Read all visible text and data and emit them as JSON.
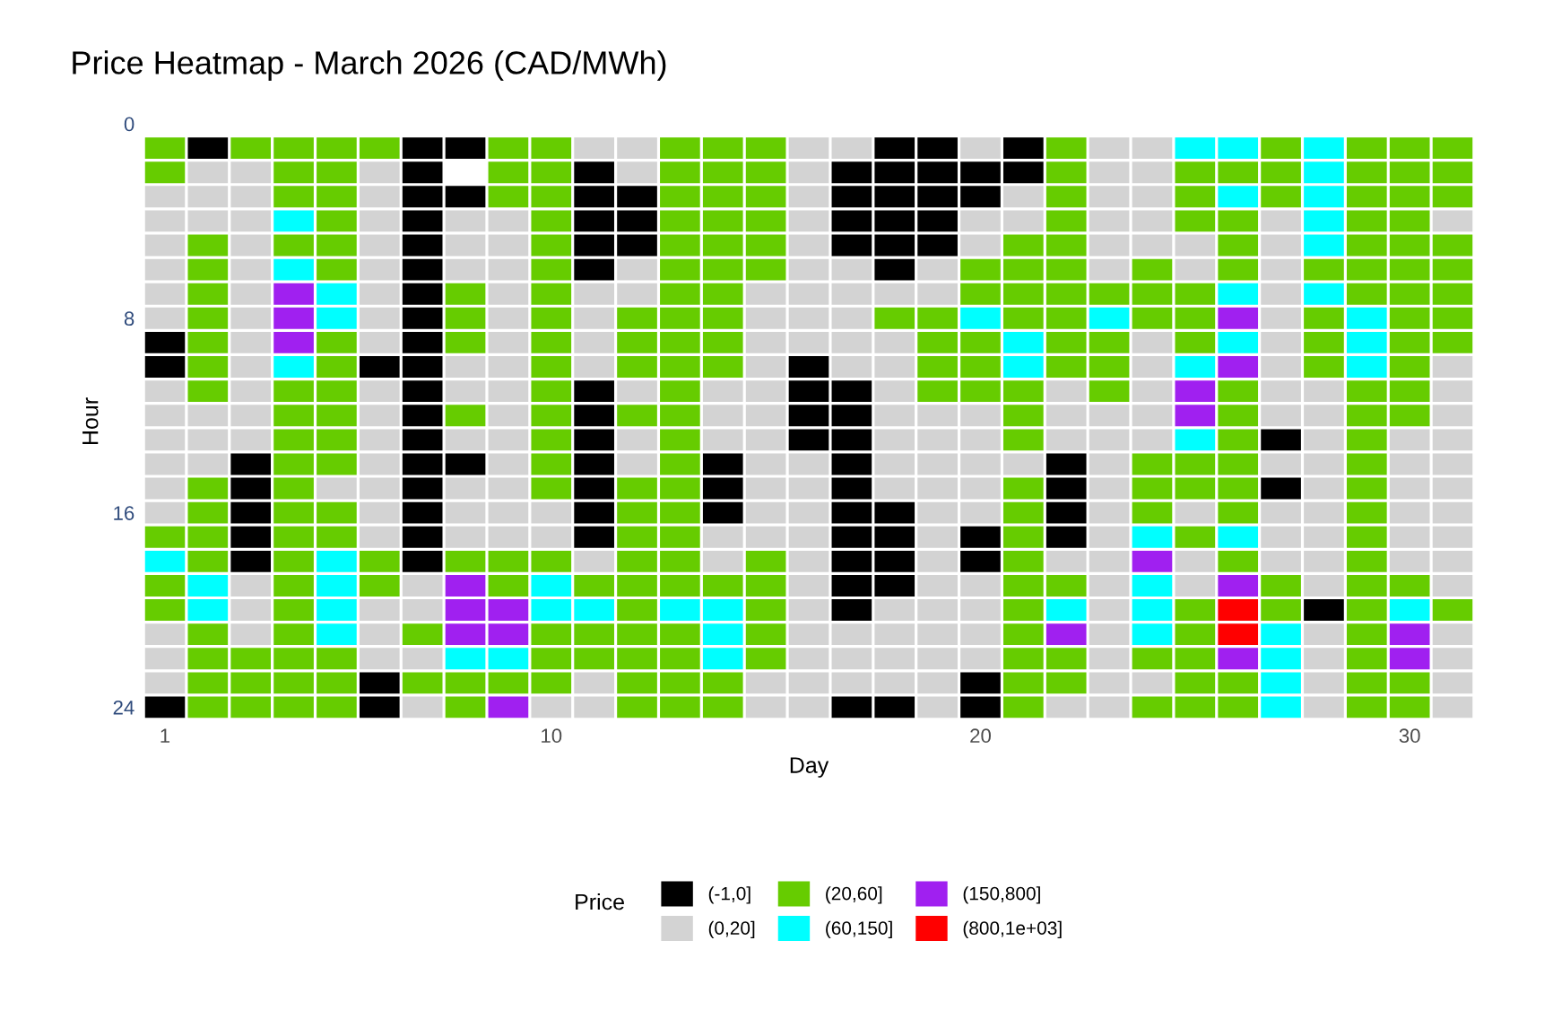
{
  "chart_data": {
    "type": "scatter",
    "marker": "square",
    "title": "Price Heatmap - March 2026 (CAD/MWh)",
    "xlabel": "Day",
    "ylabel": "Hour",
    "legend_title": "Price",
    "legend": "bottom",
    "xlim": [
      0.5,
      31.5
    ],
    "xticks": [
      1,
      10,
      20,
      30
    ],
    "ylim": [
      24.5,
      0
    ],
    "yticks": [
      0,
      8,
      16,
      24
    ],
    "series": [
      {
        "name": "(-1,0]",
        "color": "#000000",
        "x": [
          1,
          1,
          1,
          2,
          3,
          3,
          3,
          3,
          3,
          6,
          6,
          6,
          7,
          7,
          7,
          7,
          7,
          7,
          7,
          7,
          7,
          7,
          7,
          7,
          7,
          7,
          7,
          7,
          7,
          7,
          8,
          8,
          8,
          11,
          11,
          11,
          11,
          11,
          11,
          11,
          11,
          11,
          11,
          11,
          11,
          12,
          12,
          12,
          14,
          14,
          14,
          16,
          16,
          16,
          16,
          17,
          17,
          17,
          17,
          17,
          17,
          17,
          17,
          17,
          17,
          17,
          17,
          17,
          17,
          17,
          18,
          18,
          18,
          18,
          18,
          18,
          18,
          18,
          18,
          18,
          18,
          19,
          19,
          19,
          19,
          19,
          20,
          20,
          20,
          20,
          20,
          20,
          21,
          21,
          22,
          22,
          22,
          22,
          27,
          27,
          28
        ],
        "values": [
          9,
          10,
          24,
          1,
          14,
          15,
          16,
          17,
          18,
          10,
          23,
          24,
          1,
          2,
          3,
          4,
          5,
          6,
          7,
          8,
          9,
          10,
          11,
          12,
          13,
          14,
          15,
          16,
          17,
          18,
          1,
          3,
          14,
          2,
          3,
          4,
          5,
          6,
          11,
          12,
          13,
          14,
          15,
          16,
          17,
          3,
          4,
          5,
          14,
          15,
          16,
          10,
          11,
          12,
          13,
          2,
          3,
          4,
          5,
          11,
          12,
          13,
          14,
          15,
          16,
          17,
          18,
          19,
          20,
          24,
          1,
          2,
          3,
          4,
          5,
          6,
          16,
          17,
          18,
          19,
          24,
          1,
          2,
          3,
          4,
          5,
          2,
          3,
          17,
          18,
          23,
          24,
          1,
          2,
          14,
          15,
          16,
          17,
          13,
          15,
          20
        ]
      },
      {
        "name": "(0,20]",
        "color": "#d3d3d3",
        "x": [
          1,
          1,
          1,
          1,
          1,
          1,
          1,
          1,
          1,
          1,
          1,
          1,
          1,
          1,
          1,
          2,
          2,
          2,
          2,
          2,
          2,
          3,
          3,
          3,
          3,
          3,
          3,
          3,
          3,
          3,
          3,
          3,
          3,
          3,
          3,
          3,
          5,
          6,
          6,
          6,
          6,
          6,
          6,
          6,
          6,
          6,
          6,
          6,
          6,
          6,
          6,
          6,
          6,
          6,
          6,
          7,
          7,
          7,
          7,
          8,
          8,
          8,
          8,
          8,
          8,
          8,
          8,
          8,
          9,
          9,
          9,
          9,
          9,
          9,
          9,
          9,
          9,
          9,
          9,
          9,
          9,
          9,
          10,
          10,
          10,
          11,
          11,
          11,
          11,
          11,
          11,
          11,
          11,
          12,
          12,
          12,
          12,
          12,
          12,
          12,
          14,
          14,
          14,
          14,
          14,
          15,
          15,
          15,
          15,
          15,
          15,
          15,
          15,
          15,
          15,
          15,
          15,
          15,
          16,
          16,
          16,
          16,
          16,
          16,
          16,
          16,
          16,
          16,
          16,
          16,
          16,
          16,
          16,
          16,
          16,
          16,
          16,
          16,
          17,
          17,
          17,
          17,
          17,
          17,
          17,
          17,
          17,
          18,
          18,
          18,
          18,
          18,
          18,
          18,
          18,
          18,
          18,
          18,
          18,
          19,
          19,
          19,
          19,
          19,
          19,
          19,
          19,
          19,
          19,
          19,
          19,
          19,
          19,
          19,
          20,
          20,
          20,
          20,
          20,
          20,
          20,
          20,
          20,
          20,
          20,
          20,
          21,
          21,
          21,
          22,
          22,
          22,
          22,
          22,
          23,
          23,
          23,
          23,
          23,
          23,
          23,
          23,
          23,
          23,
          23,
          23,
          23,
          23,
          23,
          23,
          23,
          23,
          23,
          24,
          24,
          24,
          24,
          24,
          24,
          24,
          24,
          24,
          24,
          24,
          25,
          25,
          25,
          25,
          25,
          27,
          27,
          27,
          27,
          27,
          27,
          27,
          27,
          27,
          27,
          27,
          27,
          27,
          28,
          28,
          28,
          28,
          28,
          28,
          28,
          28,
          28,
          28,
          28,
          28,
          28,
          30,
          30,
          30,
          30,
          30,
          30,
          31,
          31,
          31,
          31,
          31,
          31,
          31,
          31,
          31,
          31,
          31,
          31,
          31,
          31,
          31
        ],
        "values": [
          3,
          4,
          5,
          6,
          7,
          8,
          11,
          12,
          13,
          14,
          15,
          16,
          21,
          22,
          23,
          2,
          3,
          4,
          12,
          13,
          14,
          2,
          3,
          4,
          5,
          6,
          7,
          8,
          9,
          10,
          11,
          12,
          13,
          19,
          20,
          21,
          15,
          2,
          3,
          4,
          5,
          6,
          7,
          8,
          9,
          11,
          12,
          13,
          14,
          15,
          16,
          17,
          20,
          21,
          22,
          19,
          20,
          22,
          24,
          4,
          5,
          6,
          10,
          11,
          13,
          15,
          16,
          17,
          4,
          5,
          6,
          7,
          8,
          9,
          10,
          11,
          12,
          13,
          14,
          15,
          16,
          17,
          16,
          17,
          24,
          1,
          7,
          8,
          9,
          10,
          18,
          23,
          24,
          1,
          2,
          6,
          7,
          11,
          13,
          14,
          11,
          12,
          13,
          17,
          18,
          7,
          8,
          9,
          10,
          11,
          12,
          13,
          14,
          15,
          16,
          17,
          23,
          24,
          1,
          2,
          3,
          4,
          5,
          6,
          7,
          8,
          9,
          14,
          15,
          16,
          17,
          18,
          19,
          20,
          21,
          22,
          23,
          24,
          1,
          6,
          7,
          8,
          9,
          10,
          21,
          22,
          23,
          7,
          9,
          10,
          11,
          12,
          13,
          14,
          15,
          20,
          21,
          22,
          23,
          6,
          7,
          12,
          13,
          14,
          15,
          16,
          17,
          18,
          19,
          20,
          21,
          22,
          23,
          24,
          1,
          4,
          5,
          12,
          13,
          14,
          15,
          16,
          19,
          20,
          21,
          22,
          3,
          4,
          14,
          11,
          12,
          13,
          18,
          24,
          1,
          2,
          3,
          4,
          5,
          6,
          12,
          13,
          14,
          15,
          16,
          17,
          18,
          19,
          20,
          21,
          22,
          23,
          24,
          1,
          2,
          3,
          4,
          5,
          9,
          10,
          11,
          12,
          13,
          23,
          5,
          6,
          16,
          18,
          19,
          4,
          5,
          6,
          7,
          8,
          9,
          10,
          11,
          12,
          14,
          16,
          17,
          18,
          11,
          12,
          13,
          14,
          15,
          16,
          17,
          18,
          19,
          21,
          22,
          23,
          24,
          13,
          14,
          15,
          16,
          17,
          18,
          4,
          10,
          11,
          12,
          13,
          14,
          15,
          16,
          17,
          18,
          19,
          21,
          22,
          23,
          24
        ]
      },
      {
        "name": "(20,60]",
        "color": "#66cc00",
        "x": [
          1,
          1,
          1,
          1,
          1,
          2,
          2,
          2,
          2,
          2,
          2,
          2,
          2,
          2,
          2,
          2,
          2,
          2,
          2,
          2,
          3,
          3,
          3,
          3,
          4,
          4,
          4,
          4,
          4,
          4,
          4,
          4,
          4,
          4,
          4,
          4,
          4,
          4,
          4,
          4,
          4,
          4,
          5,
          5,
          5,
          5,
          5,
          5,
          5,
          5,
          5,
          5,
          5,
          5,
          5,
          5,
          5,
          5,
          5,
          6,
          6,
          6,
          7,
          7,
          8,
          8,
          8,
          8,
          8,
          8,
          8,
          9,
          9,
          9,
          9,
          9,
          9,
          10,
          10,
          10,
          10,
          10,
          10,
          10,
          10,
          10,
          10,
          10,
          10,
          10,
          10,
          10,
          10,
          10,
          10,
          10,
          11,
          11,
          11,
          12,
          12,
          12,
          12,
          12,
          12,
          12,
          12,
          12,
          12,
          12,
          12,
          12,
          12,
          13,
          13,
          13,
          13,
          13,
          13,
          13,
          13,
          13,
          13,
          13,
          13,
          13,
          13,
          13,
          13,
          13,
          13,
          13,
          13,
          13,
          13,
          13,
          14,
          14,
          14,
          14,
          14,
          14,
          14,
          14,
          14,
          14,
          14,
          14,
          14,
          15,
          15,
          15,
          15,
          15,
          15,
          15,
          15,
          15,
          15,
          15,
          18,
          19,
          19,
          19,
          19,
          20,
          20,
          20,
          20,
          20,
          21,
          21,
          21,
          21,
          21,
          21,
          21,
          21,
          21,
          21,
          21,
          21,
          21,
          21,
          21,
          21,
          21,
          22,
          22,
          22,
          22,
          22,
          22,
          22,
          22,
          22,
          22,
          22,
          22,
          22,
          23,
          23,
          23,
          23,
          24,
          24,
          24,
          24,
          24,
          24,
          24,
          24,
          25,
          25,
          25,
          25,
          25,
          25,
          25,
          25,
          25,
          25,
          25,
          25,
          25,
          25,
          26,
          26,
          26,
          26,
          26,
          26,
          26,
          26,
          26,
          26,
          26,
          26,
          26,
          27,
          27,
          27,
          27,
          27,
          28,
          28,
          28,
          28,
          29,
          29,
          29,
          29,
          29,
          29,
          29,
          29,
          29,
          29,
          29,
          29,
          29,
          29,
          29,
          29,
          29,
          29,
          29,
          29,
          29,
          30,
          30,
          30,
          30,
          30,
          30,
          30,
          30,
          30,
          30,
          30,
          30,
          30,
          30,
          30,
          31,
          31,
          31,
          31,
          31,
          31,
          31,
          31,
          31
        ],
        "values": [
          1,
          2,
          17,
          19,
          20,
          5,
          6,
          7,
          8,
          9,
          10,
          11,
          15,
          16,
          17,
          18,
          21,
          22,
          23,
          24,
          1,
          22,
          23,
          24,
          1,
          2,
          3,
          5,
          11,
          12,
          13,
          14,
          15,
          16,
          17,
          18,
          19,
          20,
          21,
          22,
          23,
          24,
          1,
          2,
          3,
          4,
          5,
          6,
          9,
          10,
          11,
          12,
          13,
          14,
          16,
          17,
          22,
          23,
          24,
          1,
          18,
          19,
          21,
          23,
          7,
          8,
          9,
          12,
          18,
          23,
          24,
          1,
          2,
          3,
          18,
          19,
          23,
          1,
          2,
          3,
          4,
          5,
          6,
          7,
          8,
          9,
          10,
          11,
          12,
          13,
          14,
          15,
          18,
          21,
          22,
          23,
          19,
          21,
          22,
          8,
          9,
          10,
          12,
          15,
          16,
          17,
          18,
          19,
          20,
          21,
          22,
          23,
          24,
          1,
          2,
          3,
          4,
          5,
          6,
          7,
          8,
          9,
          10,
          11,
          12,
          13,
          14,
          15,
          16,
          17,
          18,
          19,
          21,
          22,
          23,
          24,
          1,
          2,
          3,
          4,
          5,
          6,
          7,
          8,
          9,
          10,
          19,
          23,
          24,
          1,
          2,
          3,
          4,
          5,
          6,
          18,
          19,
          20,
          21,
          22,
          8,
          8,
          9,
          10,
          11,
          6,
          7,
          9,
          10,
          11,
          5,
          6,
          7,
          8,
          11,
          12,
          13,
          15,
          16,
          17,
          18,
          19,
          20,
          21,
          22,
          23,
          24,
          1,
          2,
          3,
          4,
          5,
          6,
          7,
          8,
          9,
          10,
          19,
          22,
          23,
          7,
          9,
          10,
          11,
          6,
          7,
          8,
          14,
          15,
          16,
          22,
          24,
          2,
          3,
          4,
          7,
          8,
          9,
          14,
          15,
          17,
          20,
          21,
          22,
          23,
          24,
          2,
          4,
          5,
          6,
          11,
          12,
          13,
          14,
          15,
          16,
          18,
          23,
          24,
          1,
          2,
          3,
          19,
          20,
          6,
          8,
          9,
          10,
          1,
          2,
          3,
          4,
          5,
          6,
          7,
          11,
          12,
          13,
          14,
          15,
          16,
          17,
          18,
          19,
          20,
          21,
          22,
          23,
          24,
          1,
          2,
          3,
          4,
          5,
          6,
          7,
          8,
          9,
          10,
          11,
          12,
          19,
          23,
          24,
          1,
          2,
          3,
          5,
          6,
          7,
          8,
          9,
          20
        ]
      },
      {
        "name": "(60,150]",
        "color": "#00ffff",
        "x": [
          1,
          2,
          2,
          4,
          4,
          4,
          5,
          5,
          5,
          5,
          5,
          5,
          8,
          9,
          10,
          10,
          11,
          13,
          14,
          14,
          14,
          20,
          21,
          21,
          22,
          23,
          24,
          24,
          24,
          24,
          25,
          25,
          25,
          26,
          26,
          26,
          26,
          26,
          27,
          27,
          27,
          27,
          28,
          28,
          28,
          28,
          28,
          28,
          29,
          29,
          29,
          30
        ],
        "values": [
          18,
          19,
          20,
          4,
          6,
          10,
          7,
          8,
          18,
          19,
          20,
          21,
          22,
          22,
          19,
          20,
          20,
          20,
          20,
          21,
          22,
          8,
          9,
          10,
          20,
          8,
          17,
          19,
          20,
          21,
          1,
          10,
          13,
          1,
          3,
          7,
          9,
          17,
          21,
          22,
          23,
          24,
          1,
          2,
          3,
          4,
          5,
          7,
          8,
          9,
          10,
          20
        ]
      },
      {
        "name": "(150,800]",
        "color": "#a020f0",
        "x": [
          4,
          4,
          4,
          8,
          8,
          8,
          9,
          9,
          9,
          22,
          24,
          25,
          25,
          26,
          26,
          26,
          26,
          30,
          30
        ],
        "values": [
          7,
          8,
          9,
          19,
          20,
          21,
          20,
          21,
          24,
          21,
          18,
          11,
          12,
          8,
          10,
          19,
          22,
          21,
          22
        ]
      },
      {
        "name": "(800,1e+03]",
        "color": "#ff0000",
        "x": [
          26,
          26
        ],
        "values": [
          20,
          21
        ]
      }
    ]
  }
}
